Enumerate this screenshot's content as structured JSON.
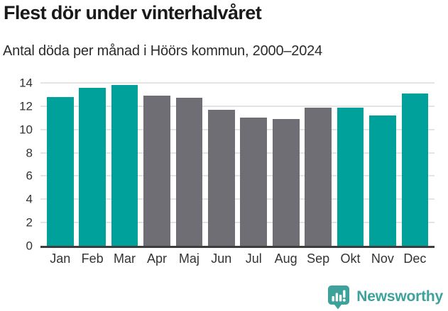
{
  "title": "Flest dör under vinterhalvåret",
  "subtitle": "Antal döda per månad i Höörs kommun, 2000–2024",
  "colors": {
    "teal": "#00a19b",
    "gray": "#6e6e74",
    "gridline": "#e4e4e4",
    "axis_line": "#3d3d3d",
    "tick_text": "#333333",
    "title_text": "#1a1a1a",
    "brand": "#3ea29c"
  },
  "chart_data": {
    "type": "bar",
    "title": "Flest dör under vinterhalvåret",
    "subtitle": "Antal döda per månad i Höörs kommun, 2000–2024",
    "categories": [
      "Jan",
      "Feb",
      "Mar",
      "Apr",
      "Maj",
      "Jun",
      "Jul",
      "Aug",
      "Sep",
      "Okt",
      "Nov",
      "Dec"
    ],
    "values": [
      12.8,
      13.6,
      13.8,
      12.9,
      12.7,
      11.7,
      11.0,
      10.9,
      11.9,
      11.9,
      11.2,
      13.1
    ],
    "bar_colors": [
      "teal",
      "teal",
      "teal",
      "gray",
      "gray",
      "gray",
      "gray",
      "gray",
      "gray",
      "teal",
      "teal",
      "teal"
    ],
    "xlabel": "",
    "ylabel": "",
    "ylim": [
      0,
      14
    ],
    "yticks": [
      0,
      2,
      4,
      6,
      8,
      10,
      12,
      14
    ],
    "grid": true,
    "legend": false
  },
  "footer": {
    "brand_name": "Newsworthy",
    "logo_icon": "bar-chart-speech-bubble-icon"
  }
}
